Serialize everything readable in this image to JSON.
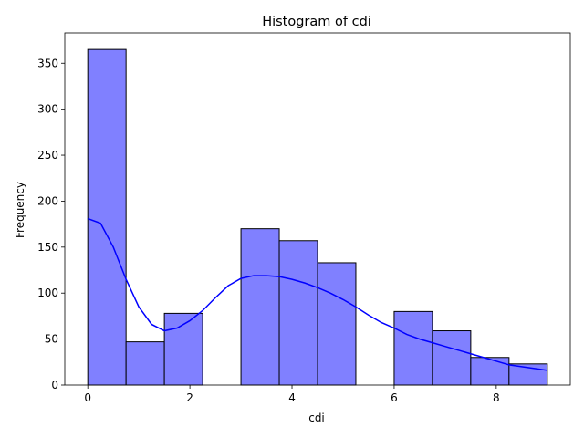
{
  "chart_data": {
    "type": "bar",
    "title": "Histogram of cdi",
    "xlabel": "cdi",
    "ylabel": "Frequency",
    "xlim": [
      -0.45,
      9.45
    ],
    "ylim": [
      0,
      383
    ],
    "xticks": [
      0,
      2,
      4,
      6,
      8
    ],
    "yticks": [
      0,
      50,
      100,
      150,
      200,
      250,
      300,
      350
    ],
    "bin_edges": [
      0,
      0.75,
      1.5,
      2.25,
      3,
      3.75,
      4.5,
      5.25,
      6,
      6.75,
      7.5,
      8.25,
      9
    ],
    "values": [
      365,
      47,
      78,
      0,
      170,
      157,
      133,
      0,
      80,
      59,
      30,
      23
    ],
    "bar_color": "#8080ff",
    "bar_edge_color": "#000000",
    "kde": {
      "color": "#0000ff",
      "x": [
        0,
        0.25,
        0.5,
        0.75,
        1,
        1.25,
        1.5,
        1.75,
        2,
        2.25,
        2.5,
        2.75,
        3,
        3.25,
        3.5,
        3.75,
        4,
        4.25,
        4.5,
        4.75,
        5,
        5.25,
        5.5,
        5.75,
        6,
        6.25,
        6.5,
        6.75,
        7,
        7.25,
        7.5,
        7.75,
        8,
        8.25,
        8.5,
        8.75,
        9
      ],
      "y": [
        181,
        176,
        150,
        115,
        85,
        66,
        59,
        62,
        70,
        81,
        95,
        108,
        116,
        119,
        119,
        118,
        115,
        111,
        106,
        100,
        93,
        85,
        76,
        68,
        62,
        55,
        50,
        46,
        42,
        38,
        34,
        30,
        26,
        22,
        20,
        18,
        16
      ]
    },
    "grid": false,
    "legend": "none"
  }
}
